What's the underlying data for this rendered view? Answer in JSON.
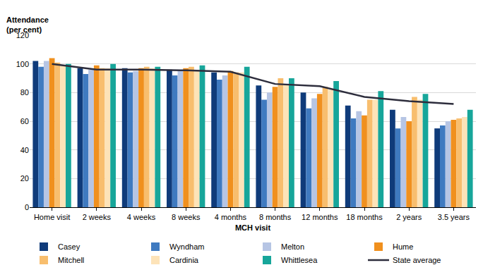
{
  "chart_data": {
    "type": "bar",
    "x_label": "MCH visit",
    "y_label": "Attendance\n(per cent)",
    "categories": [
      "Home visit",
      "2 weeks",
      "4 weeks",
      "8 weeks",
      "4 months",
      "8 months",
      "12 months",
      "18 months",
      "2 years",
      "3.5 years"
    ],
    "series": [
      {
        "name": "Casey",
        "color": "#0f3b7a",
        "values": [
          102,
          97,
          97,
          96,
          94,
          85,
          80,
          71,
          68,
          55
        ]
      },
      {
        "name": "Wyndham",
        "color": "#3f7ac0",
        "values": [
          98,
          93,
          94,
          92,
          89,
          75,
          69,
          62,
          55,
          57
        ]
      },
      {
        "name": "Melton",
        "color": "#b6c5e4",
        "values": [
          102,
          96,
          95,
          95,
          92,
          80,
          76,
          67,
          63,
          60
        ]
      },
      {
        "name": "Hume",
        "color": "#f0901e",
        "values": [
          104,
          99,
          97,
          97,
          95,
          84,
          79,
          64,
          60,
          61
        ]
      },
      {
        "name": "Mitchell",
        "color": "#f8be6e",
        "values": [
          101,
          97,
          98,
          98,
          94,
          90,
          84,
          75,
          77,
          62
        ]
      },
      {
        "name": "Cardinia",
        "color": "#fde3b8",
        "values": [
          99,
          97,
          97,
          95,
          94,
          86,
          82,
          75,
          75,
          63
        ]
      },
      {
        "name": "Whittlesea",
        "color": "#17a69a",
        "values": [
          100,
          100,
          98,
          99,
          98,
          90,
          88,
          81,
          79,
          68
        ]
      },
      {
        "name": "State average",
        "color": "#2d2d3c",
        "type": "line",
        "values": [
          100,
          96,
          96,
          95.5,
          94.5,
          86,
          84.5,
          77,
          74,
          72
        ]
      }
    ],
    "ylim": [
      0,
      120
    ],
    "yticks": [
      0,
      20,
      40,
      60,
      80,
      100,
      120
    ],
    "grid": true,
    "legend": "bottom"
  }
}
